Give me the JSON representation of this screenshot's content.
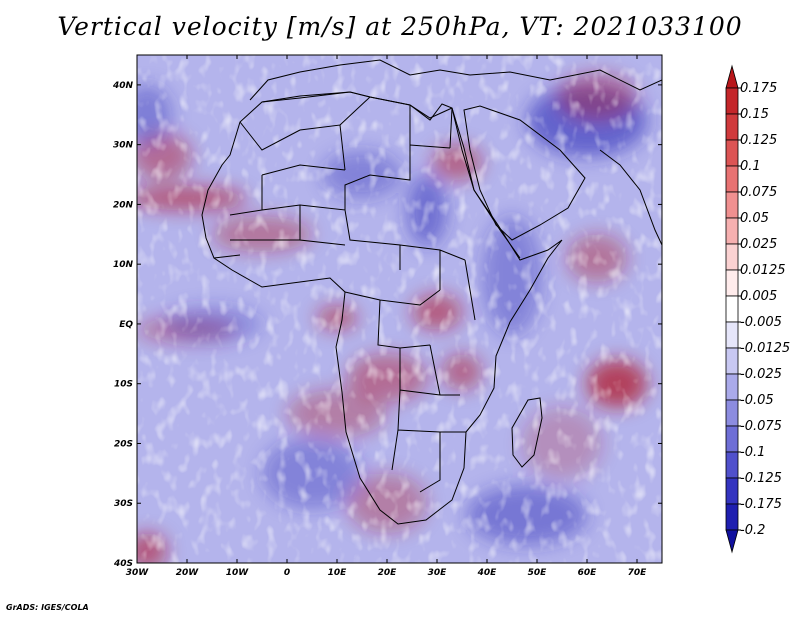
{
  "title": "Vertical velocity [m/s] at 250hPa, VT: 2021033100",
  "credit": "GrADS: IGES/COLA",
  "map": {
    "longitude_range": [
      -30,
      75
    ],
    "latitude_range": [
      -40,
      45
    ],
    "lon_ticks": [
      {
        "value": -30,
        "label": "30W"
      },
      {
        "value": -20,
        "label": "20W"
      },
      {
        "value": -10,
        "label": "10W"
      },
      {
        "value": 0,
        "label": "0"
      },
      {
        "value": 10,
        "label": "10E"
      },
      {
        "value": 20,
        "label": "20E"
      },
      {
        "value": 30,
        "label": "30E"
      },
      {
        "value": 40,
        "label": "40E"
      },
      {
        "value": 50,
        "label": "50E"
      },
      {
        "value": 60,
        "label": "60E"
      },
      {
        "value": 70,
        "label": "70E"
      }
    ],
    "lat_ticks": [
      {
        "value": 40,
        "label": "40N"
      },
      {
        "value": 30,
        "label": "30N"
      },
      {
        "value": 20,
        "label": "20N"
      },
      {
        "value": 10,
        "label": "10N"
      },
      {
        "value": 0,
        "label": "EQ"
      },
      {
        "value": -10,
        "label": "10S"
      },
      {
        "value": -20,
        "label": "20S"
      },
      {
        "value": -30,
        "label": "30S"
      },
      {
        "value": -40,
        "label": "40S"
      }
    ],
    "colors": {
      "positive": "#b2182b",
      "negative": "#2c2cb8",
      "neutral": "#ffffff",
      "border": "#000000"
    }
  },
  "colorbar": {
    "levels": [
      "0.175",
      "0.15",
      "0.125",
      "0.1",
      "0.075",
      "0.05",
      "0.025",
      "0.0125",
      "0.005",
      "-0.005",
      "-0.0125",
      "-0.025",
      "-0.05",
      "-0.075",
      "-0.1",
      "-0.125",
      "-0.175",
      "-0.2"
    ],
    "colors": [
      "#b8161a",
      "#c4262a",
      "#d03a3c",
      "#dc5454",
      "#e87272",
      "#f09090",
      "#f6b0b0",
      "#fbd2d2",
      "#ffecec",
      "#ffffff",
      "#e6e6fa",
      "#c8c8f2",
      "#aaaaea",
      "#8c8ce0",
      "#6e6ed6",
      "#5050cc",
      "#3434c0",
      "#1f1fb0",
      "#10109e"
    ]
  }
}
